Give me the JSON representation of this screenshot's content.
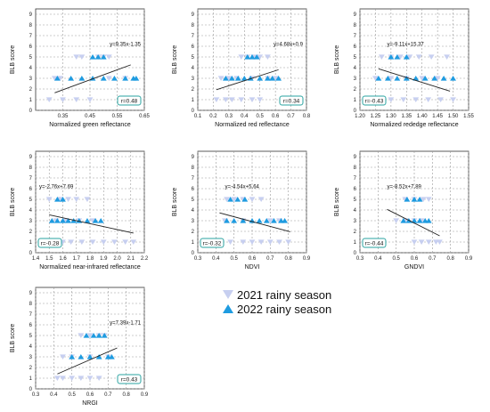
{
  "figure": {
    "legend": [
      {
        "label": "2021 rainy season",
        "color": "#c7cff0",
        "marker": "triangle-down"
      },
      {
        "label": "2022 rainy season",
        "color": "#1e9be0",
        "marker": "triangle-up"
      }
    ]
  },
  "chart_data": [
    {
      "type": "scatter",
      "xlabel": "Normalized green reflectance",
      "ylabel": "BLB score",
      "xlim": [
        0.25,
        0.65
      ],
      "ylim": [
        0,
        9.5
      ],
      "xticks": [
        "0.35",
        "0.45",
        "0.55",
        "0.65"
      ],
      "yticks": [
        "0",
        "1",
        "2",
        "3",
        "4",
        "5",
        "6",
        "7",
        "8",
        "9"
      ],
      "grid": true,
      "equation": "y=9.35x-1.35",
      "r_label": "r=0.48",
      "trend": {
        "slope": 9.35,
        "intercept": -1.35,
        "x_range": [
          0.32,
          0.6
        ]
      },
      "series": [
        {
          "name": "2021 rainy season",
          "points": [
            [
              0.4,
              5
            ],
            [
              0.42,
              5
            ],
            [
              0.48,
              5
            ],
            [
              0.5,
              5
            ],
            [
              0.52,
              5
            ],
            [
              0.32,
              3
            ],
            [
              0.34,
              3
            ],
            [
              0.52,
              3
            ],
            [
              0.58,
              3
            ],
            [
              0.3,
              1
            ],
            [
              0.35,
              1
            ],
            [
              0.4,
              1
            ],
            [
              0.45,
              1
            ]
          ]
        },
        {
          "name": "2022 rainy season",
          "points": [
            [
              0.46,
              5
            ],
            [
              0.48,
              5
            ],
            [
              0.5,
              5
            ],
            [
              0.33,
              3
            ],
            [
              0.38,
              3
            ],
            [
              0.42,
              3
            ],
            [
              0.46,
              3
            ],
            [
              0.5,
              3
            ],
            [
              0.54,
              3
            ],
            [
              0.58,
              3
            ],
            [
              0.61,
              3
            ],
            [
              0.62,
              3
            ]
          ]
        }
      ]
    },
    {
      "type": "scatter",
      "xlabel": "Normalized red reflectance",
      "ylabel": "BLB score",
      "xlim": [
        0.1,
        0.8
      ],
      "ylim": [
        0,
        9.5
      ],
      "xticks": [
        "0.1",
        "0.2",
        "0.3",
        "0.4",
        "0.5",
        "0.6",
        "0.7",
        "0.8"
      ],
      "yticks": [
        "0",
        "1",
        "2",
        "3",
        "4",
        "5",
        "6",
        "7",
        "8",
        "9"
      ],
      "grid": true,
      "equation": "y=4.68x+0.9",
      "r_label": "r=0.34",
      "trend": {
        "slope": 4.68,
        "intercept": 0.9,
        "x_range": [
          0.22,
          0.62
        ]
      },
      "series": [
        {
          "name": "2021 rainy season",
          "points": [
            [
              0.38,
              5
            ],
            [
              0.42,
              5
            ],
            [
              0.46,
              5
            ],
            [
              0.5,
              5
            ],
            [
              0.55,
              5
            ],
            [
              0.25,
              3
            ],
            [
              0.3,
              3
            ],
            [
              0.35,
              3
            ],
            [
              0.45,
              3
            ],
            [
              0.55,
              3
            ],
            [
              0.6,
              3
            ],
            [
              0.22,
              1
            ],
            [
              0.28,
              1
            ],
            [
              0.32,
              1
            ],
            [
              0.38,
              1
            ],
            [
              0.45,
              1
            ],
            [
              0.5,
              1
            ]
          ]
        },
        {
          "name": "2022 rainy season",
          "points": [
            [
              0.42,
              5
            ],
            [
              0.45,
              5
            ],
            [
              0.48,
              5
            ],
            [
              0.28,
              3
            ],
            [
              0.32,
              3
            ],
            [
              0.36,
              3
            ],
            [
              0.4,
              3
            ],
            [
              0.44,
              3
            ],
            [
              0.5,
              3
            ],
            [
              0.55,
              3
            ],
            [
              0.58,
              3
            ],
            [
              0.62,
              3
            ]
          ]
        }
      ]
    },
    {
      "type": "scatter",
      "xlabel": "Normalized rededge reflectance",
      "ylabel": "BLB score",
      "xlim": [
        1.2,
        1.55
      ],
      "ylim": [
        0,
        9.5
      ],
      "xticks": [
        "1.20",
        "1.25",
        "1.30",
        "1.35",
        "1.40",
        "1.45",
        "1.50",
        "1.55"
      ],
      "yticks": [
        "0",
        "1",
        "2",
        "3",
        "4",
        "5",
        "6",
        "7",
        "8",
        "9"
      ],
      "grid": true,
      "equation": "y=-9.11x+15.37",
      "r_label": "r=-0.43",
      "trend": {
        "slope": -9.11,
        "intercept": 15.37,
        "x_range": [
          1.26,
          1.49
        ]
      },
      "series": [
        {
          "name": "2021 rainy season",
          "points": [
            [
              1.27,
              5
            ],
            [
              1.3,
              5
            ],
            [
              1.33,
              5
            ],
            [
              1.36,
              5
            ],
            [
              1.39,
              5
            ],
            [
              1.43,
              5
            ],
            [
              1.48,
              5
            ],
            [
              1.25,
              3
            ],
            [
              1.3,
              3
            ],
            [
              1.35,
              3
            ],
            [
              1.4,
              3
            ],
            [
              1.45,
              3
            ],
            [
              1.3,
              1
            ],
            [
              1.34,
              1
            ],
            [
              1.38,
              1
            ],
            [
              1.42,
              1
            ],
            [
              1.46,
              1
            ],
            [
              1.5,
              1
            ]
          ]
        },
        {
          "name": "2022 rainy season",
          "points": [
            [
              1.3,
              5
            ],
            [
              1.32,
              5
            ],
            [
              1.35,
              5
            ],
            [
              1.26,
              3
            ],
            [
              1.29,
              3
            ],
            [
              1.32,
              3
            ],
            [
              1.35,
              3
            ],
            [
              1.38,
              3
            ],
            [
              1.41,
              3
            ],
            [
              1.44,
              3
            ],
            [
              1.47,
              3
            ],
            [
              1.5,
              3
            ]
          ]
        }
      ]
    },
    {
      "type": "scatter",
      "xlabel": "Normalized near-infrared reflectance",
      "ylabel": "BLB score",
      "xlim": [
        1.4,
        2.2
      ],
      "ylim": [
        0,
        9.5
      ],
      "xticks": [
        "1.4",
        "1.5",
        "1.6",
        "1.7",
        "1.8",
        "1.9",
        "2.0",
        "2.1",
        "2.2"
      ],
      "yticks": [
        "0",
        "1",
        "2",
        "3",
        "4",
        "5",
        "6",
        "7",
        "8",
        "9"
      ],
      "grid": true,
      "equation": "y=-2.76x+7.69",
      "r_label": "r=-0.28",
      "trend": {
        "slope": -2.76,
        "intercept": 7.69,
        "x_range": [
          1.5,
          2.12
        ]
      },
      "series": [
        {
          "name": "2021 rainy season",
          "points": [
            [
              1.5,
              5
            ],
            [
              1.58,
              5
            ],
            [
              1.64,
              5
            ],
            [
              1.7,
              5
            ],
            [
              1.78,
              5
            ],
            [
              1.55,
              3
            ],
            [
              1.62,
              3
            ],
            [
              1.72,
              3
            ],
            [
              1.82,
              3
            ],
            [
              1.6,
              1
            ],
            [
              1.66,
              1
            ],
            [
              1.74,
              1
            ],
            [
              1.82,
              1
            ],
            [
              1.9,
              1
            ],
            [
              1.98,
              1
            ],
            [
              2.06,
              1
            ],
            [
              2.12,
              1
            ]
          ]
        },
        {
          "name": "2022 rainy season",
          "points": [
            [
              1.56,
              5
            ],
            [
              1.6,
              5
            ],
            [
              1.52,
              3
            ],
            [
              1.56,
              3
            ],
            [
              1.6,
              3
            ],
            [
              1.64,
              3
            ],
            [
              1.68,
              3
            ],
            [
              1.72,
              3
            ],
            [
              1.78,
              3
            ],
            [
              1.84,
              3
            ],
            [
              1.88,
              3
            ]
          ]
        }
      ]
    },
    {
      "type": "scatter",
      "xlabel": "NDVI",
      "ylabel": "BLB score",
      "xlim": [
        0.3,
        0.9
      ],
      "ylim": [
        0,
        9.5
      ],
      "xticks": [
        "0.3",
        "0.4",
        "0.5",
        "0.6",
        "0.7",
        "0.8",
        "0.9"
      ],
      "yticks": [
        "0",
        "1",
        "2",
        "3",
        "4",
        "5",
        "6",
        "7",
        "8",
        "9"
      ],
      "grid": true,
      "equation": "y=-4.54x+5.64",
      "r_label": "r=-0.32",
      "trend": {
        "slope": -4.54,
        "intercept": 5.64,
        "x_range": [
          0.42,
          0.81
        ]
      },
      "series": [
        {
          "name": "2021 rainy season",
          "points": [
            [
              0.46,
              5
            ],
            [
              0.5,
              5
            ],
            [
              0.55,
              5
            ],
            [
              0.6,
              5
            ],
            [
              0.65,
              5
            ],
            [
              0.45,
              3
            ],
            [
              0.55,
              3
            ],
            [
              0.7,
              3
            ],
            [
              0.75,
              3
            ],
            [
              0.43,
              1
            ],
            [
              0.48,
              1
            ],
            [
              0.55,
              1
            ],
            [
              0.6,
              1
            ],
            [
              0.65,
              1
            ],
            [
              0.7,
              1
            ],
            [
              0.75,
              1
            ],
            [
              0.8,
              1
            ]
          ]
        },
        {
          "name": "2022 rainy season",
          "points": [
            [
              0.48,
              5
            ],
            [
              0.52,
              5
            ],
            [
              0.56,
              5
            ],
            [
              0.46,
              3
            ],
            [
              0.5,
              3
            ],
            [
              0.55,
              3
            ],
            [
              0.6,
              3
            ],
            [
              0.64,
              3
            ],
            [
              0.68,
              3
            ],
            [
              0.72,
              3
            ],
            [
              0.76,
              3
            ],
            [
              0.78,
              3
            ]
          ]
        }
      ]
    },
    {
      "type": "scatter",
      "xlabel": "GNDVI",
      "ylabel": "BLB score",
      "xlim": [
        0.3,
        0.9
      ],
      "ylim": [
        0,
        9.5
      ],
      "xticks": [
        "0.3",
        "0.4",
        "0.5",
        "0.6",
        "0.7",
        "0.8",
        "0.9"
      ],
      "yticks": [
        "0",
        "1",
        "2",
        "3",
        "4",
        "5",
        "6",
        "7",
        "8",
        "9"
      ],
      "grid": true,
      "equation": "y=-8.52x+7.89",
      "r_label": "r=-0.44",
      "trend": {
        "slope": -8.52,
        "intercept": 7.89,
        "x_range": [
          0.45,
          0.74
        ]
      },
      "series": [
        {
          "name": "2021 rainy season",
          "points": [
            [
              0.55,
              5
            ],
            [
              0.6,
              5
            ],
            [
              0.65,
              5
            ],
            [
              0.68,
              5
            ],
            [
              0.5,
              3
            ],
            [
              0.55,
              3
            ],
            [
              0.6,
              3
            ],
            [
              0.64,
              3
            ],
            [
              0.6,
              1
            ],
            [
              0.64,
              1
            ],
            [
              0.68,
              1
            ],
            [
              0.72,
              1
            ],
            [
              0.74,
              1
            ]
          ]
        },
        {
          "name": "2022 rainy season",
          "points": [
            [
              0.56,
              5
            ],
            [
              0.6,
              5
            ],
            [
              0.63,
              5
            ],
            [
              0.54,
              3
            ],
            [
              0.57,
              3
            ],
            [
              0.6,
              3
            ],
            [
              0.63,
              3
            ],
            [
              0.66,
              3
            ],
            [
              0.68,
              3
            ]
          ]
        }
      ]
    },
    {
      "type": "scatter",
      "xlabel": "NRGI",
      "ylabel": "BLB score",
      "xlim": [
        0.3,
        0.9
      ],
      "ylim": [
        0,
        9.5
      ],
      "xticks": [
        "0.3",
        "0.4",
        "0.5",
        "0.6",
        "0.7",
        "0.8",
        "0.9"
      ],
      "yticks": [
        "0",
        "1",
        "2",
        "3",
        "4",
        "5",
        "6",
        "7",
        "8",
        "9"
      ],
      "grid": true,
      "equation": "y=7.39x-1.71",
      "r_label": "r=0.43",
      "trend": {
        "slope": 7.39,
        "intercept": -1.71,
        "x_range": [
          0.42,
          0.75
        ]
      },
      "series": [
        {
          "name": "2021 rainy season",
          "points": [
            [
              0.55,
              5
            ],
            [
              0.6,
              5
            ],
            [
              0.65,
              5
            ],
            [
              0.68,
              5
            ],
            [
              0.45,
              3
            ],
            [
              0.5,
              3
            ],
            [
              0.6,
              3
            ],
            [
              0.7,
              3
            ],
            [
              0.42,
              1
            ],
            [
              0.45,
              1
            ],
            [
              0.5,
              1
            ],
            [
              0.55,
              1
            ],
            [
              0.6,
              1
            ],
            [
              0.65,
              1
            ]
          ]
        },
        {
          "name": "2022 rainy season",
          "points": [
            [
              0.58,
              5
            ],
            [
              0.62,
              5
            ],
            [
              0.65,
              5
            ],
            [
              0.68,
              5
            ],
            [
              0.5,
              3
            ],
            [
              0.55,
              3
            ],
            [
              0.6,
              3
            ],
            [
              0.65,
              3
            ],
            [
              0.7,
              3
            ],
            [
              0.72,
              3
            ]
          ]
        }
      ]
    }
  ]
}
